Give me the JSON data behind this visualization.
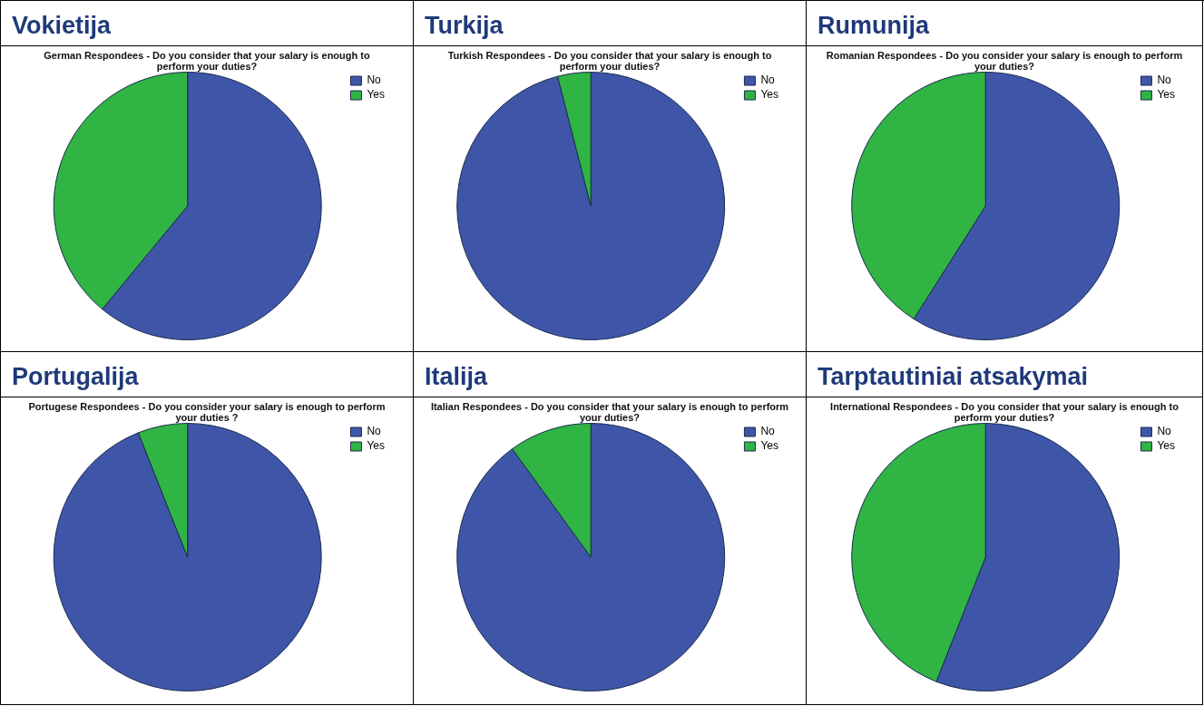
{
  "chart_data": [
    {
      "type": "pie",
      "title": "Vokietija",
      "subtitle": "German Respondees - Do you consider that your salary is enough to perform your duties?",
      "categories": [
        "No",
        "Yes"
      ],
      "values": [
        61,
        39
      ],
      "colors": [
        "#3f56a8",
        "#30b443"
      ],
      "legend": "top right"
    },
    {
      "type": "pie",
      "title": "Turkija",
      "subtitle": "Turkish Respondees - Do you consider that your salary is enough to perform your duties?",
      "categories": [
        "No",
        "Yes"
      ],
      "values": [
        96,
        4
      ],
      "colors": [
        "#3f56a8",
        "#30b443"
      ],
      "legend": "top right"
    },
    {
      "type": "pie",
      "title": "Rumunija",
      "subtitle": "Romanian Respondees - Do you consider your salary is enough to perform your duties?",
      "categories": [
        "No",
        "Yes"
      ],
      "values": [
        59,
        41
      ],
      "colors": [
        "#3f56a8",
        "#30b443"
      ],
      "legend": "top right"
    },
    {
      "type": "pie",
      "title": "Portugalija",
      "subtitle": "Portugese Respondees - Do you consider your salary is enough to perform your duties ?",
      "categories": [
        "No",
        "Yes"
      ],
      "values": [
        94,
        6
      ],
      "colors": [
        "#3f56a8",
        "#30b443"
      ],
      "legend": "top right"
    },
    {
      "type": "pie",
      "title": "Italija",
      "subtitle": "Italian Respondees - Do you consider that your salary is enough to perform your duties?",
      "categories": [
        "No",
        "Yes"
      ],
      "values": [
        90,
        10
      ],
      "colors": [
        "#3f56a8",
        "#30b443"
      ],
      "legend": "top right"
    },
    {
      "type": "pie",
      "title": "Tarptautiniai atsakymai",
      "subtitle": "International Respondees - Do you consider that your salary is enough to perform your duties?",
      "categories": [
        "No",
        "Yes"
      ],
      "values": [
        56,
        44
      ],
      "colors": [
        "#3f56a8",
        "#30b443"
      ],
      "legend": "top right"
    }
  ]
}
